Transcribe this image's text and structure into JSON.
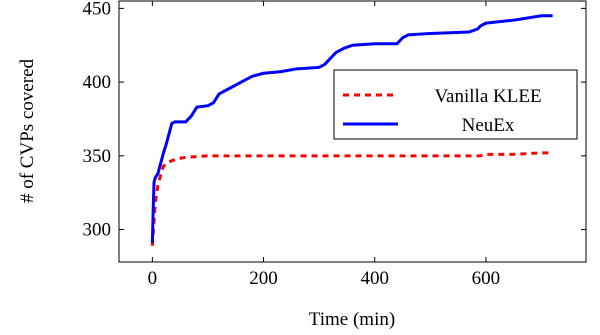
{
  "chart_data": {
    "type": "line",
    "title": "",
    "xlabel": "Time (min)",
    "ylabel": "# of CVPs covered",
    "xlim": [
      -60,
      780
    ],
    "ylim": [
      278,
      455
    ],
    "xticks": [
      0,
      200,
      400,
      600
    ],
    "yticks": [
      300,
      350,
      400,
      450
    ],
    "grid": false,
    "legend_position": "center-right",
    "series": [
      {
        "name": "Vanilla KLEE",
        "color": "#ff0000",
        "style": "dashed",
        "points": [
          [
            0,
            289
          ],
          [
            2,
            300
          ],
          [
            4,
            312
          ],
          [
            6,
            320
          ],
          [
            10,
            330
          ],
          [
            15,
            337
          ],
          [
            20,
            343
          ],
          [
            30,
            346
          ],
          [
            45,
            348
          ],
          [
            60,
            349
          ],
          [
            100,
            350
          ],
          [
            200,
            350
          ],
          [
            300,
            350
          ],
          [
            400,
            350
          ],
          [
            500,
            350
          ],
          [
            590,
            350
          ],
          [
            600,
            351
          ],
          [
            650,
            351
          ],
          [
            700,
            352
          ],
          [
            720,
            352
          ]
        ]
      },
      {
        "name": "NeuEx",
        "color": "#0000ff",
        "style": "solid",
        "points": [
          [
            0,
            291
          ],
          [
            2,
            320
          ],
          [
            3,
            332
          ],
          [
            5,
            335
          ],
          [
            10,
            338
          ],
          [
            15,
            345
          ],
          [
            20,
            352
          ],
          [
            25,
            358
          ],
          [
            30,
            365
          ],
          [
            35,
            372
          ],
          [
            40,
            373
          ],
          [
            60,
            373
          ],
          [
            70,
            377
          ],
          [
            80,
            383
          ],
          [
            100,
            384
          ],
          [
            110,
            386
          ],
          [
            120,
            392
          ],
          [
            140,
            396
          ],
          [
            160,
            400
          ],
          [
            180,
            404
          ],
          [
            200,
            406
          ],
          [
            230,
            407
          ],
          [
            260,
            409
          ],
          [
            300,
            410
          ],
          [
            310,
            412
          ],
          [
            320,
            416
          ],
          [
            330,
            420
          ],
          [
            345,
            423
          ],
          [
            360,
            425
          ],
          [
            400,
            426
          ],
          [
            440,
            426
          ],
          [
            450,
            430
          ],
          [
            460,
            432
          ],
          [
            500,
            433
          ],
          [
            570,
            434
          ],
          [
            585,
            436
          ],
          [
            590,
            438
          ],
          [
            600,
            440
          ],
          [
            650,
            442
          ],
          [
            700,
            445
          ],
          [
            720,
            445
          ]
        ]
      }
    ]
  }
}
